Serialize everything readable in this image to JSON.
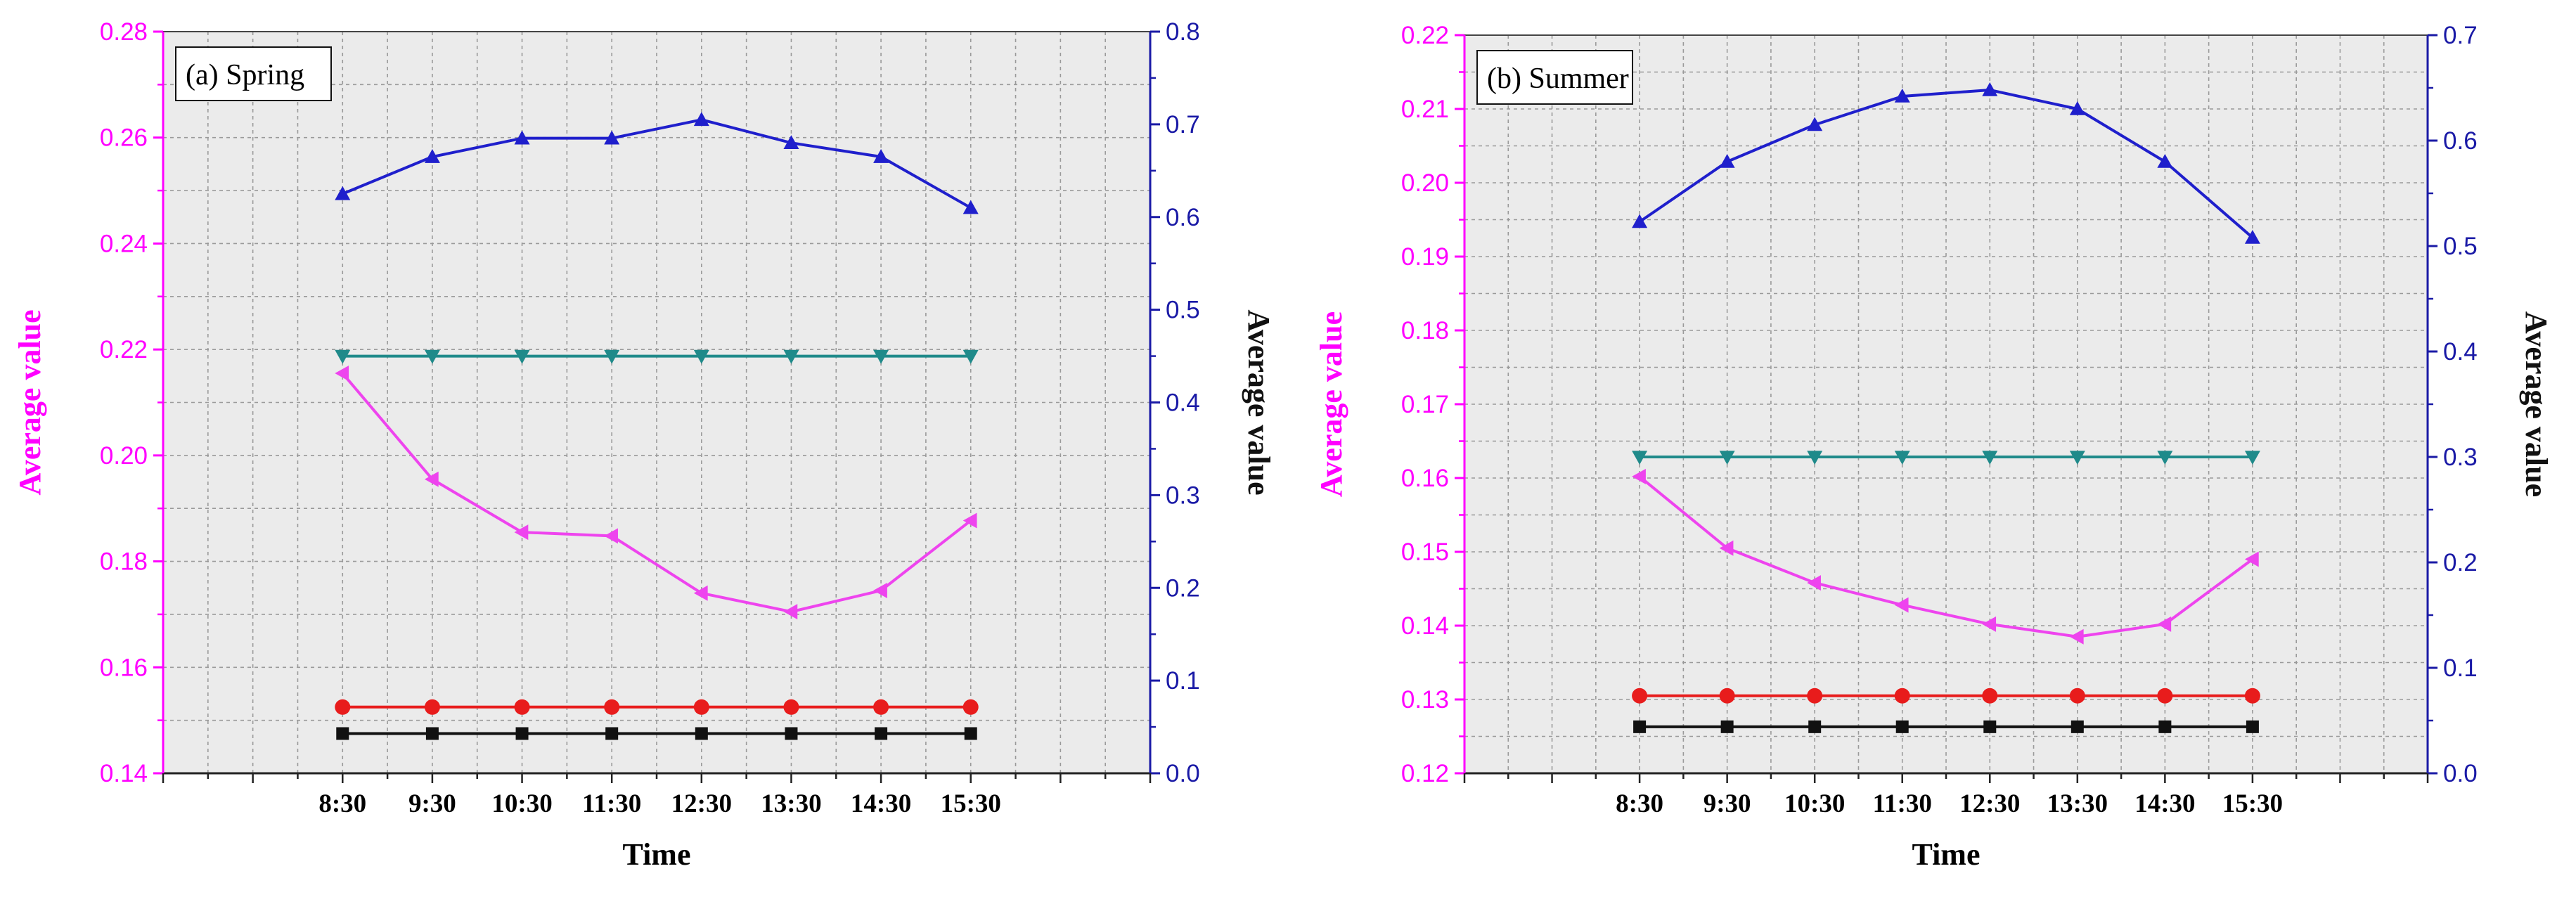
{
  "chart_data": [
    {
      "type": "line",
      "panel_label": "(a) Spring",
      "xlabel": "Time",
      "ylabel_left": "Average value",
      "ylabel_right": "Average value",
      "categories": [
        "8:30",
        "9:30",
        "10:30",
        "11:30",
        "12:30",
        "13:30",
        "14:30",
        "15:30"
      ],
      "ylim_left": [
        0.14,
        0.28
      ],
      "yticks_left": [
        "0.14",
        "0.16",
        "0.18",
        "0.20",
        "0.22",
        "0.24",
        "0.26",
        "0.28"
      ],
      "ylim_right": [
        0.0,
        0.8
      ],
      "yticks_right": [
        "0.0",
        "0.1",
        "0.2",
        "0.3",
        "0.4",
        "0.5",
        "0.6",
        "0.7",
        "0.8"
      ],
      "grid": true,
      "series": [
        {
          "axis": "right",
          "color": "#1f1fcc",
          "marker": "triangle-up",
          "values": [
            0.625,
            0.665,
            0.685,
            0.685,
            0.705,
            0.68,
            0.665,
            0.61
          ]
        },
        {
          "axis": "right",
          "color": "#1f8a8a",
          "marker": "triangle-down",
          "values": [
            0.45,
            0.45,
            0.45,
            0.45,
            0.45,
            0.45,
            0.45,
            0.45
          ]
        },
        {
          "axis": "left",
          "color": "#ee44ee",
          "marker": "triangle-left",
          "values": [
            0.2155,
            0.1955,
            0.1855,
            0.1848,
            0.174,
            0.1705,
            0.1745,
            0.1877
          ]
        },
        {
          "axis": "left",
          "color": "#e81c1c",
          "marker": "circle",
          "values": [
            0.1525,
            0.1525,
            0.1525,
            0.1525,
            0.1525,
            0.1525,
            0.1525,
            0.1525
          ]
        },
        {
          "axis": "left",
          "color": "#111111",
          "marker": "square",
          "values": [
            0.1475,
            0.1475,
            0.1475,
            0.1475,
            0.1475,
            0.1475,
            0.1475,
            0.1475
          ]
        }
      ]
    },
    {
      "type": "line",
      "panel_label": "(b) Summer",
      "xlabel": "Time",
      "ylabel_left": "Average value",
      "ylabel_right": "Average value",
      "categories": [
        "8:30",
        "9:30",
        "10:30",
        "11:30",
        "12:30",
        "13:30",
        "14:30",
        "15:30"
      ],
      "ylim_left": [
        0.12,
        0.22
      ],
      "yticks_left": [
        "0.12",
        "0.13",
        "0.14",
        "0.15",
        "0.16",
        "0.17",
        "0.18",
        "0.19",
        "0.20",
        "0.21",
        "0.22"
      ],
      "ylim_right": [
        0.0,
        0.7
      ],
      "yticks_right": [
        "0.0",
        "0.1",
        "0.2",
        "0.3",
        "0.4",
        "0.5",
        "0.6",
        "0.7"
      ],
      "grid": true,
      "series": [
        {
          "axis": "right",
          "color": "#1f1fcc",
          "marker": "triangle-up",
          "values": [
            0.523,
            0.58,
            0.615,
            0.642,
            0.648,
            0.63,
            0.58,
            0.508
          ]
        },
        {
          "axis": "right",
          "color": "#1f8a8a",
          "marker": "triangle-down",
          "values": [
            0.3,
            0.3,
            0.3,
            0.3,
            0.3,
            0.3,
            0.3,
            0.3
          ]
        },
        {
          "axis": "left",
          "color": "#ee44ee",
          "marker": "triangle-left",
          "values": [
            0.1602,
            0.1505,
            0.1458,
            0.1428,
            0.1402,
            0.1385,
            0.1402,
            0.149
          ]
        },
        {
          "axis": "left",
          "color": "#e81c1c",
          "marker": "circle",
          "values": [
            0.1305,
            0.1305,
            0.1305,
            0.1305,
            0.1305,
            0.1305,
            0.1305,
            0.1305
          ]
        },
        {
          "axis": "left",
          "color": "#111111",
          "marker": "square",
          "values": [
            0.1263,
            0.1263,
            0.1263,
            0.1263,
            0.1263,
            0.1263,
            0.1263,
            0.1263
          ]
        }
      ]
    }
  ]
}
